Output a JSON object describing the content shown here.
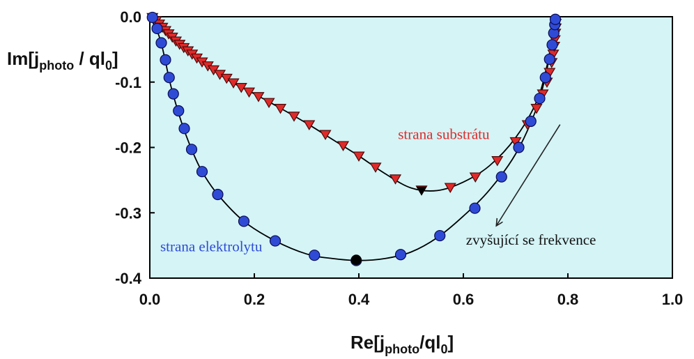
{
  "chart_data": {
    "type": "scatter",
    "title": "",
    "xlabel": {
      "main": "Re[j",
      "sub1": "photo",
      "mid": "/ql",
      "sub2": "0",
      "end": "]"
    },
    "ylabel": {
      "main": "Im[j",
      "sub1": "photo",
      "mid": " / ql",
      "sub2": "0",
      "end": "]"
    },
    "xlim": [
      0.0,
      1.0
    ],
    "ylim": [
      -0.4,
      0.0
    ],
    "xticks": [
      "0.0",
      "0.2",
      "0.4",
      "0.6",
      "0.8",
      "1.0"
    ],
    "yticks": [
      "0.0",
      "-0.1",
      "-0.2",
      "-0.3",
      "-0.4"
    ],
    "background_color": "#d4f4f6",
    "grid": false,
    "series": [
      {
        "name": "strana substrátu",
        "marker": "triangle-down",
        "color": "#e02a2a",
        "x": [
          0.005,
          0.012,
          0.018,
          0.024,
          0.03,
          0.036,
          0.043,
          0.05,
          0.057,
          0.065,
          0.073,
          0.081,
          0.09,
          0.1,
          0.111,
          0.122,
          0.134,
          0.147,
          0.16,
          0.175,
          0.19,
          0.208,
          0.228,
          0.25,
          0.276,
          0.305,
          0.336,
          0.37,
          0.4,
          0.432,
          0.47,
          0.52,
          0.575,
          0.623,
          0.665,
          0.7,
          0.723,
          0.74,
          0.752,
          0.76,
          0.765,
          0.769,
          0.772,
          0.774,
          0.775,
          0.776,
          0.777,
          0.777
        ],
        "y": [
          -0.001,
          -0.006,
          -0.011,
          -0.016,
          -0.021,
          -0.026,
          -0.031,
          -0.037,
          -0.042,
          -0.047,
          -0.052,
          -0.057,
          -0.063,
          -0.069,
          -0.075,
          -0.081,
          -0.088,
          -0.094,
          -0.101,
          -0.108,
          -0.115,
          -0.122,
          -0.131,
          -0.14,
          -0.152,
          -0.165,
          -0.18,
          -0.197,
          -0.213,
          -0.23,
          -0.248,
          -0.265,
          -0.261,
          -0.245,
          -0.22,
          -0.191,
          -0.165,
          -0.14,
          -0.118,
          -0.1,
          -0.085,
          -0.07,
          -0.057,
          -0.045,
          -0.035,
          -0.025,
          -0.017,
          -0.01
        ]
      },
      {
        "name": "strana elektrolytu",
        "marker": "circle",
        "color": "#2f4bd6",
        "x": [
          0.005,
          0.014,
          0.022,
          0.03,
          0.037,
          0.045,
          0.055,
          0.066,
          0.08,
          0.1,
          0.13,
          0.18,
          0.24,
          0.315,
          0.395,
          0.48,
          0.555,
          0.622,
          0.673,
          0.706,
          0.729,
          0.746,
          0.757,
          0.765,
          0.77,
          0.773,
          0.775,
          0.776
        ],
        "y": [
          -0.001,
          -0.018,
          -0.04,
          -0.066,
          -0.093,
          -0.118,
          -0.144,
          -0.171,
          -0.203,
          -0.237,
          -0.272,
          -0.313,
          -0.343,
          -0.365,
          -0.373,
          -0.364,
          -0.335,
          -0.293,
          -0.245,
          -0.2,
          -0.16,
          -0.125,
          -0.093,
          -0.065,
          -0.043,
          -0.025,
          -0.012,
          -0.004
        ]
      }
    ],
    "special_points": [
      {
        "series": "strana substrátu",
        "x": 0.52,
        "y": -0.266,
        "color": "#000000"
      },
      {
        "series": "strana elektrolytu",
        "x": 0.395,
        "y": -0.372,
        "color": "#000000"
      }
    ],
    "fit_curves": [
      {
        "series": "strana substrátu",
        "x": [
          0.0,
          0.03,
          0.06,
          0.1,
          0.15,
          0.2,
          0.25,
          0.3,
          0.35,
          0.4,
          0.45,
          0.5,
          0.55,
          0.6,
          0.65,
          0.7,
          0.74,
          0.76,
          0.775
        ],
        "y": [
          0.0,
          -0.021,
          -0.044,
          -0.069,
          -0.097,
          -0.118,
          -0.14,
          -0.163,
          -0.188,
          -0.213,
          -0.24,
          -0.262,
          -0.266,
          -0.253,
          -0.228,
          -0.185,
          -0.13,
          -0.075,
          -0.01
        ]
      },
      {
        "series": "strana elektrolytu",
        "x": [
          0.0,
          0.02,
          0.04,
          0.06,
          0.08,
          0.1,
          0.13,
          0.18,
          0.24,
          0.3,
          0.35,
          0.4,
          0.45,
          0.5,
          0.55,
          0.6,
          0.65,
          0.7,
          0.74,
          0.76,
          0.772,
          0.777
        ],
        "y": [
          0.0,
          -0.035,
          -0.105,
          -0.16,
          -0.203,
          -0.237,
          -0.272,
          -0.313,
          -0.343,
          -0.363,
          -0.37,
          -0.373,
          -0.37,
          -0.36,
          -0.338,
          -0.305,
          -0.265,
          -0.21,
          -0.14,
          -0.08,
          -0.03,
          -0.002
        ]
      }
    ],
    "annotations": [
      {
        "id": "substrate",
        "text": "strana substrátu",
        "x": 0.475,
        "y": -0.187,
        "color": "#e02a2a"
      },
      {
        "id": "electrolyte",
        "text": "strana elektrolytu",
        "x": 0.02,
        "y": -0.359,
        "color": "#2f4bd6"
      },
      {
        "id": "frequency",
        "text": "zvyšující se frekvence",
        "x": 0.605,
        "y": -0.349,
        "color": "#111111"
      }
    ],
    "arrow": {
      "x1": 0.785,
      "y1": -0.165,
      "x2": 0.663,
      "y2": -0.32,
      "color": "#222222"
    }
  }
}
